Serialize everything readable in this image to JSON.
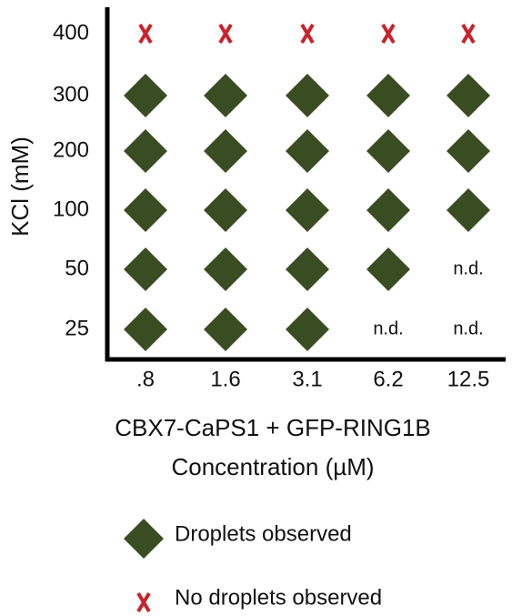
{
  "chart_data": {
    "type": "matrix",
    "ylabel": "KCl (mM)",
    "xlabel": [
      "CBX7-CaPS1 + GFP-RING1B",
      "Concentration (µM)"
    ],
    "categories": [
      ".8",
      "1.6",
      "3.1",
      "6.2",
      "12.5"
    ],
    "y_categories": [
      400,
      300,
      200,
      100,
      50,
      25
    ],
    "series": [
      {
        "name": "Droplets observed",
        "color": "#3a4d22",
        "marker": "diamond",
        "x": [
          ".8",
          "1.6",
          "3.1",
          "6.2",
          "12.5",
          ".8",
          "1.6",
          "3.1",
          "6.2",
          "12.5",
          ".8",
          "1.6",
          "3.1",
          "6.2",
          "12.5",
          ".8",
          "1.6",
          "3.1",
          "6.2",
          ".8",
          "1.6",
          "3.1"
        ],
        "y": [
          300,
          300,
          300,
          300,
          300,
          200,
          200,
          200,
          200,
          200,
          100,
          100,
          100,
          100,
          100,
          50,
          50,
          50,
          50,
          25,
          25,
          25
        ]
      },
      {
        "name": "No droplets observed",
        "color": "#c8232b",
        "marker": "x",
        "x": [
          ".8",
          "1.6",
          "3.1",
          "6.2",
          "12.5"
        ],
        "y": [
          400,
          400,
          400,
          400,
          400
        ]
      }
    ],
    "annotations": [
      {
        "text": "n.d.",
        "x": "12.5",
        "y": 50
      },
      {
        "text": "n.d.",
        "x": "6.2",
        "y": 25
      },
      {
        "text": "n.d.",
        "x": "12.5",
        "y": 25
      }
    ]
  }
}
